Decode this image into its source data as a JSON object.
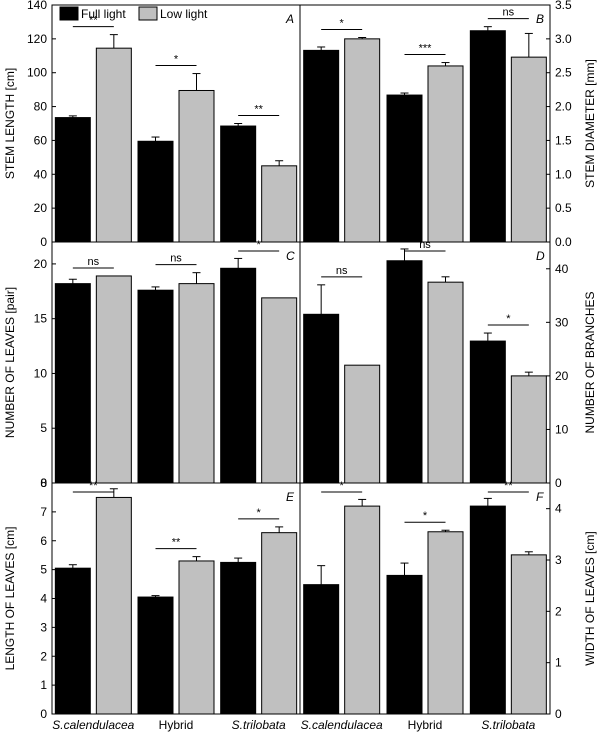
{
  "legend": {
    "full_light": "Full light",
    "low_light": "Low light"
  },
  "colors": {
    "full_light": "#000000",
    "low_light": "#c0c0c0"
  },
  "chart_data": [
    {
      "type": "bar",
      "panel": "A",
      "ylabel": "STEM LENGTH [cm]",
      "ylim": [
        0,
        140
      ],
      "yticks": [
        0,
        20,
        40,
        60,
        80,
        100,
        120,
        140
      ],
      "categories": [
        "S.calendulacea",
        "Hybrid",
        "S.trilobata"
      ],
      "series": [
        {
          "name": "Full light",
          "values": [
            73.5,
            59.5,
            68.5
          ],
          "errors": [
            1,
            2.5,
            1.5
          ]
        },
        {
          "name": "Low light",
          "values": [
            114.5,
            89.5,
            45
          ],
          "errors": [
            8,
            10,
            3
          ]
        }
      ],
      "significance": [
        "**",
        "*",
        "**"
      ]
    },
    {
      "type": "bar",
      "panel": "B",
      "ylabel": "STEM DIAMETER [mm]",
      "ylim": [
        0,
        3.5
      ],
      "yticks": [
        0,
        0.5,
        1.0,
        1.5,
        2.0,
        2.5,
        3.0,
        3.5
      ],
      "categories": [
        "S.calendulacea",
        "Hybrid",
        "S.trilobata"
      ],
      "series": [
        {
          "name": "Full light",
          "values": [
            2.83,
            2.17,
            3.12
          ],
          "errors": [
            0.05,
            0.03,
            0.06
          ]
        },
        {
          "name": "Low light",
          "values": [
            3.0,
            2.6,
            2.73
          ],
          "errors": [
            0.02,
            0.05,
            0.35
          ]
        }
      ],
      "significance": [
        "*",
        "***",
        "ns"
      ]
    },
    {
      "type": "bar",
      "panel": "C",
      "ylabel": "NUMBER OF LEAVES [pair]",
      "ylim": [
        0,
        22
      ],
      "yticks": [
        0,
        5,
        10,
        15,
        20
      ],
      "categories": [
        "S.calendulacea",
        "Hybrid",
        "S.trilobata"
      ],
      "series": [
        {
          "name": "Full light",
          "values": [
            18.2,
            17.6,
            19.6
          ],
          "errors": [
            0.4,
            0.3,
            0.9
          ]
        },
        {
          "name": "Low light",
          "values": [
            18.9,
            18.2,
            16.9
          ],
          "errors": [
            0,
            1.0,
            0
          ]
        }
      ],
      "significance": [
        "ns",
        "ns",
        "*"
      ]
    },
    {
      "type": "bar",
      "panel": "D",
      "ylabel": "NUMBER OF BRANCHES",
      "ylim": [
        0,
        45
      ],
      "yticks": [
        0,
        10,
        20,
        30,
        40
      ],
      "categories": [
        "S.calendulacea",
        "Hybrid",
        "S.trilobata"
      ],
      "series": [
        {
          "name": "Full light",
          "values": [
            31.5,
            41.5,
            26.5
          ],
          "errors": [
            5.5,
            2.2,
            1.5
          ]
        },
        {
          "name": "Low light",
          "values": [
            22,
            37.5,
            20
          ],
          "errors": [
            0,
            1.0,
            0.7
          ]
        }
      ],
      "significance": [
        "ns",
        "ns",
        "*"
      ]
    },
    {
      "type": "bar",
      "panel": "E",
      "ylabel": "LENGTH OF LEAVES [cm]",
      "ylim": [
        0,
        8
      ],
      "yticks": [
        0,
        1,
        2,
        3,
        4,
        5,
        6,
        7,
        8
      ],
      "categories": [
        "S.calendulacea",
        "Hybrid",
        "S.trilobata"
      ],
      "series": [
        {
          "name": "Full light",
          "values": [
            5.05,
            4.05,
            5.25
          ],
          "errors": [
            0.12,
            0.05,
            0.15
          ]
        },
        {
          "name": "Low light",
          "values": [
            7.5,
            5.3,
            6.28
          ],
          "errors": [
            0.3,
            0.15,
            0.2
          ]
        }
      ],
      "significance": [
        "**",
        "**",
        "*"
      ]
    },
    {
      "type": "bar",
      "panel": "F",
      "ylabel": "WIDTH OF LEAVES [cm]",
      "ylim": [
        0,
        4.5
      ],
      "yticks": [
        0,
        1,
        2,
        3,
        4
      ],
      "categories": [
        "S.calendulacea",
        "Hybrid",
        "S.trilobata"
      ],
      "series": [
        {
          "name": "Full light",
          "values": [
            2.52,
            2.7,
            4.05
          ],
          "errors": [
            0.37,
            0.24,
            0.15
          ]
        },
        {
          "name": "Low light",
          "values": [
            4.05,
            3.55,
            3.1
          ],
          "errors": [
            0.13,
            0.03,
            0.06
          ]
        }
      ],
      "significance": [
        "*",
        "*",
        "**"
      ]
    }
  ]
}
